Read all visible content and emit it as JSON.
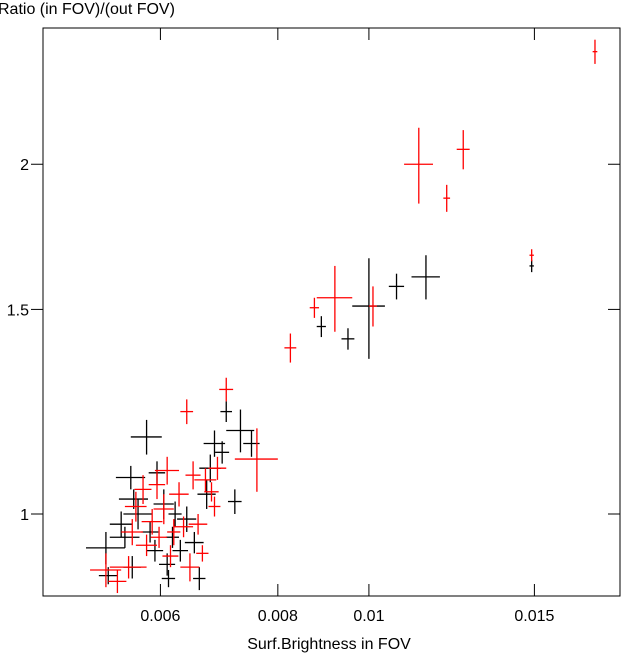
{
  "chart_data": {
    "type": "scatter",
    "title": "",
    "xlabel": "Surf.Brightness in FOV",
    "ylabel": "Ratio (in FOV)/(out FOV)",
    "x_scale": "log",
    "y_scale": "log",
    "xlim": [
      0.0045,
      0.0185
    ],
    "ylim": [
      0.85,
      2.62
    ],
    "xticks": [
      0.006,
      0.008,
      0.01,
      0.015
    ],
    "xtick_labels": [
      "0.006",
      "0.008",
      "0.01",
      "0.015"
    ],
    "yticks": [
      1,
      1.5,
      2
    ],
    "ytick_labels": [
      "1",
      "1.5",
      "2"
    ],
    "grid": false,
    "legend": "none",
    "colors": {
      "series_a": "#000000",
      "series_b": "#ff0000",
      "axes": "#000000"
    },
    "series": [
      {
        "color": "#000000",
        "points": [
          {
            "x": 0.00525,
            "y": 0.935,
            "xerr": 0.00025,
            "yerr": 0.03
          },
          {
            "x": 0.00528,
            "y": 0.885,
            "xerr": 0.00012,
            "yerr": 0.015
          },
          {
            "x": 0.00545,
            "y": 0.98,
            "xerr": 0.00015,
            "yerr": 0.025
          },
          {
            "x": 0.0055,
            "y": 0.955,
            "xerr": 0.0002,
            "yerr": 0.02
          },
          {
            "x": 0.00558,
            "y": 1.075,
            "xerr": 0.0002,
            "yerr": 0.025
          },
          {
            "x": 0.0056,
            "y": 0.9,
            "xerr": 0.00012,
            "yerr": 0.02
          },
          {
            "x": 0.00562,
            "y": 1.03,
            "xerr": 0.0002,
            "yerr": 0.02
          },
          {
            "x": 0.00568,
            "y": 1.0,
            "xerr": 0.0002,
            "yerr": 0.03
          },
          {
            "x": 0.0058,
            "y": 1.165,
            "xerr": 0.00022,
            "yerr": 0.04
          },
          {
            "x": 0.00585,
            "y": 0.965,
            "xerr": 0.00012,
            "yerr": 0.02
          },
          {
            "x": 0.00592,
            "y": 0.93,
            "xerr": 0.00012,
            "yerr": 0.02
          },
          {
            "x": 0.00595,
            "y": 1.085,
            "xerr": 0.00012,
            "yerr": 0.025
          },
          {
            "x": 0.00605,
            "y": 1.02,
            "xerr": 0.00015,
            "yerr": 0.03
          },
          {
            "x": 0.0061,
            "y": 0.905,
            "xerr": 0.00012,
            "yerr": 0.02
          },
          {
            "x": 0.00612,
            "y": 0.88,
            "xerr": 0.0001,
            "yerr": 0.015
          },
          {
            "x": 0.00618,
            "y": 0.955,
            "xerr": 0.0001,
            "yerr": 0.02
          },
          {
            "x": 0.00622,
            "y": 1.0,
            "xerr": 0.0001,
            "yerr": 0.025
          },
          {
            "x": 0.0063,
            "y": 0.93,
            "xerr": 0.00012,
            "yerr": 0.02
          },
          {
            "x": 0.0064,
            "y": 0.99,
            "xerr": 0.00015,
            "yerr": 0.025
          },
          {
            "x": 0.00652,
            "y": 0.945,
            "xerr": 0.00015,
            "yerr": 0.02
          },
          {
            "x": 0.0066,
            "y": 0.88,
            "xerr": 0.0001,
            "yerr": 0.02
          },
          {
            "x": 0.00672,
            "y": 1.04,
            "xerr": 0.00015,
            "yerr": 0.03
          },
          {
            "x": 0.00678,
            "y": 1.095,
            "xerr": 0.00018,
            "yerr": 0.03
          },
          {
            "x": 0.00685,
            "y": 1.15,
            "xerr": 0.00018,
            "yerr": 0.03
          },
          {
            "x": 0.00698,
            "y": 1.13,
            "xerr": 0.00012,
            "yerr": 0.025
          },
          {
            "x": 0.00705,
            "y": 1.225,
            "xerr": 0.0001,
            "yerr": 0.025
          },
          {
            "x": 0.0072,
            "y": 1.025,
            "xerr": 0.00012,
            "yerr": 0.025
          },
          {
            "x": 0.0073,
            "y": 1.18,
            "xerr": 0.00025,
            "yerr": 0.05
          },
          {
            "x": 0.0075,
            "y": 1.15,
            "xerr": 0.00015,
            "yerr": 0.03
          },
          {
            "x": 0.0089,
            "y": 1.45,
            "xerr": 0.0001,
            "yerr": 0.03
          },
          {
            "x": 0.0095,
            "y": 1.415,
            "xerr": 0.00015,
            "yerr": 0.03
          },
          {
            "x": 0.01,
            "y": 1.51,
            "xerr": 0.0004,
            "yerr": 0.15
          },
          {
            "x": 0.0107,
            "y": 1.57,
            "xerr": 0.0002,
            "yerr": 0.04
          },
          {
            "x": 0.0115,
            "y": 1.6,
            "xerr": 0.0004,
            "yerr": 0.07
          },
          {
            "x": 0.0149,
            "y": 1.635,
            "xerr": 8e-05,
            "yerr": 0.02
          }
        ]
      },
      {
        "color": "#ff0000",
        "points": [
          {
            "x": 0.00525,
            "y": 0.895,
            "xerr": 0.0002,
            "yerr": 0.03
          },
          {
            "x": 0.0054,
            "y": 0.875,
            "xerr": 0.00012,
            "yerr": 0.02
          },
          {
            "x": 0.00555,
            "y": 0.9,
            "xerr": 0.00025,
            "yerr": 0.02
          },
          {
            "x": 0.0056,
            "y": 0.965,
            "xerr": 0.00015,
            "yerr": 0.025
          },
          {
            "x": 0.00565,
            "y": 1.015,
            "xerr": 0.00015,
            "yerr": 0.03
          },
          {
            "x": 0.00575,
            "y": 1.05,
            "xerr": 0.00012,
            "yerr": 0.03
          },
          {
            "x": 0.0058,
            "y": 0.94,
            "xerr": 0.00015,
            "yerr": 0.02
          },
          {
            "x": 0.00588,
            "y": 0.985,
            "xerr": 0.00015,
            "yerr": 0.025
          },
          {
            "x": 0.00595,
            "y": 1.06,
            "xerr": 0.00012,
            "yerr": 0.03
          },
          {
            "x": 0.00598,
            "y": 0.955,
            "xerr": 0.00012,
            "yerr": 0.02
          },
          {
            "x": 0.00605,
            "y": 1.01,
            "xerr": 0.00015,
            "yerr": 0.03
          },
          {
            "x": 0.0061,
            "y": 1.09,
            "xerr": 0.00018,
            "yerr": 0.03
          },
          {
            "x": 0.00615,
            "y": 0.92,
            "xerr": 0.00012,
            "yerr": 0.02
          },
          {
            "x": 0.0062,
            "y": 0.965,
            "xerr": 0.0001,
            "yerr": 0.025
          },
          {
            "x": 0.00628,
            "y": 1.04,
            "xerr": 0.00015,
            "yerr": 0.025
          },
          {
            "x": 0.00635,
            "y": 0.975,
            "xerr": 0.00015,
            "yerr": 0.02
          },
          {
            "x": 0.0064,
            "y": 1.225,
            "xerr": 0.0001,
            "yerr": 0.03
          },
          {
            "x": 0.00645,
            "y": 0.9,
            "xerr": 0.00015,
            "yerr": 0.025
          },
          {
            "x": 0.0065,
            "y": 1.08,
            "xerr": 0.00012,
            "yerr": 0.03
          },
          {
            "x": 0.00658,
            "y": 0.98,
            "xerr": 0.00015,
            "yerr": 0.02
          },
          {
            "x": 0.00665,
            "y": 0.925,
            "xerr": 0.0001,
            "yerr": 0.015
          },
          {
            "x": 0.0067,
            "y": 1.07,
            "xerr": 0.00018,
            "yerr": 0.025
          },
          {
            "x": 0.0068,
            "y": 1.045,
            "xerr": 0.00012,
            "yerr": 0.02
          },
          {
            "x": 0.00685,
            "y": 1.015,
            "xerr": 0.0001,
            "yerr": 0.02
          },
          {
            "x": 0.0069,
            "y": 1.095,
            "xerr": 0.00015,
            "yerr": 0.025
          },
          {
            "x": 0.00705,
            "y": 1.28,
            "xerr": 0.00012,
            "yerr": 0.03
          },
          {
            "x": 0.0076,
            "y": 1.115,
            "xerr": 0.0004,
            "yerr": 0.07
          },
          {
            "x": 0.00825,
            "y": 1.39,
            "xerr": 0.00012,
            "yerr": 0.04
          },
          {
            "x": 0.00875,
            "y": 1.505,
            "xerr": 0.0001,
            "yerr": 0.03
          },
          {
            "x": 0.0092,
            "y": 1.535,
            "xerr": 0.0004,
            "yerr": 0.1
          },
          {
            "x": 0.0101,
            "y": 1.51,
            "xerr": 0.0001,
            "yerr": 0.06
          },
          {
            "x": 0.0113,
            "y": 2.0,
            "xerr": 0.0004,
            "yerr": 0.15
          },
          {
            "x": 0.0121,
            "y": 1.87,
            "xerr": 0.0001,
            "yerr": 0.05
          },
          {
            "x": 0.0126,
            "y": 2.06,
            "xerr": 0.0002,
            "yerr": 0.08
          },
          {
            "x": 0.0149,
            "y": 1.67,
            "xerr": 8e-05,
            "yerr": 0.02
          },
          {
            "x": 0.0174,
            "y": 2.5,
            "xerr": 0.0001,
            "yerr": 0.06
          }
        ]
      }
    ]
  }
}
